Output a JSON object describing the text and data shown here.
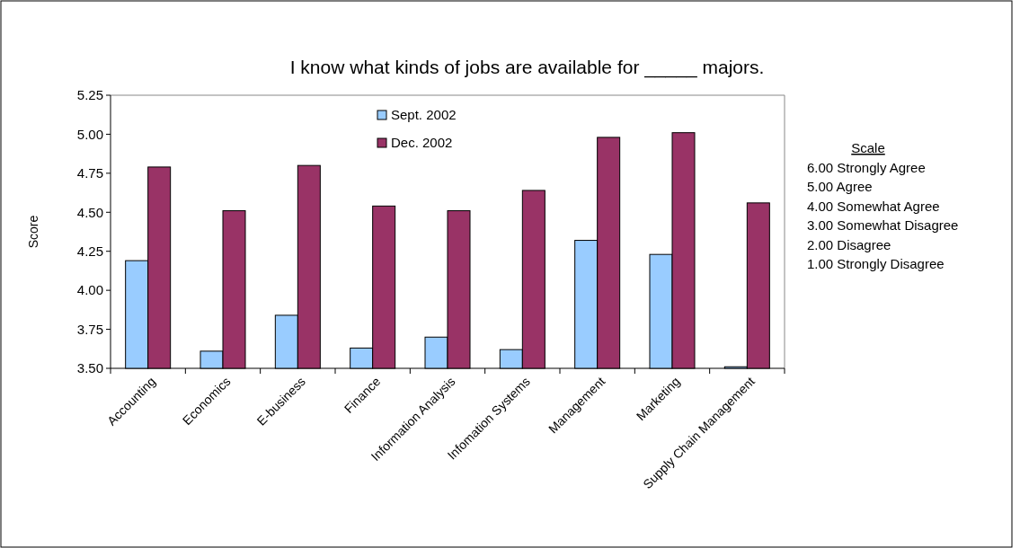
{
  "chart_data": {
    "type": "bar",
    "title": "I know what kinds of jobs are available for  _____  majors.",
    "ylabel": "Score",
    "categories": [
      "Accounting",
      "Economics",
      "E-business",
      "Finance",
      "Information Analysis",
      "Infomation Systems",
      "Management",
      "Marketing",
      "Supply Chain Management"
    ],
    "series": [
      {
        "name": "Sept. 2002",
        "color": "#99ccff",
        "values": [
          4.19,
          3.61,
          3.84,
          3.63,
          3.7,
          3.62,
          4.32,
          4.23,
          3.51
        ]
      },
      {
        "name": "Dec. 2002",
        "color": "#993366",
        "values": [
          4.79,
          4.51,
          4.8,
          4.54,
          4.51,
          4.64,
          4.98,
          5.01,
          4.56
        ]
      }
    ],
    "ylim": [
      3.5,
      5.25
    ],
    "yticks": [
      {
        "value": 3.5,
        "label": "3.50"
      },
      {
        "value": 3.75,
        "label": "3.75"
      },
      {
        "value": 4,
        "label": "4.00"
      },
      {
        "value": 4.25,
        "label": "4.25"
      },
      {
        "value": 4.5,
        "label": "4.50"
      },
      {
        "value": 4.75,
        "label": "4.75"
      },
      {
        "value": 5,
        "label": "5.00"
      },
      {
        "value": 5.25,
        "label": "5.25"
      }
    ],
    "legend": "top",
    "annotations": [
      "Scale",
      "6.00 Strongly Agree",
      "5.00 Agree",
      "4.00 Somewhat Agree",
      "3.00 Somewhat Disagree",
      "2.00 Disagree",
      "1.00 Strongly Disagree"
    ]
  }
}
